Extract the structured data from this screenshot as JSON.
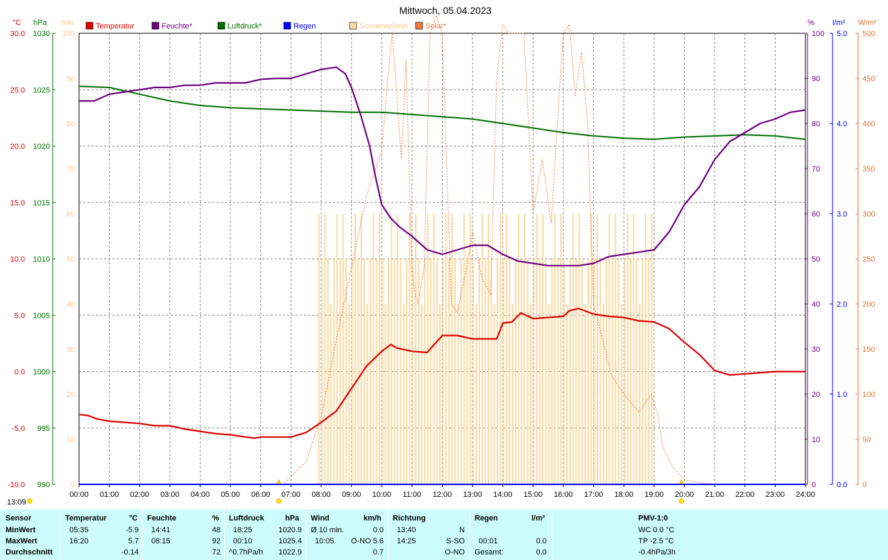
{
  "title": "Mittwoch, 05.04.2023",
  "time_label": "13:09",
  "colors": {
    "temperature": "#dd0000",
    "humidity": "#6e0080",
    "pressure": "#007000",
    "rain": "#0000ff",
    "sunshine": "#fbd9a0",
    "solar": "#f07840",
    "sun_axis": "#f8c890",
    "solar_axis": "#e07030",
    "grid": "#808080"
  },
  "legend": [
    {
      "label": "Temperatur",
      "color": "#dd0000"
    },
    {
      "label": "Feuchte*",
      "color": "#6e0080"
    },
    {
      "label": "Luftdruck*",
      "color": "#007000"
    },
    {
      "label": "Regen",
      "color": "#0000ff"
    },
    {
      "label": "Sonnenschein",
      "color": "#fbd9a0"
    },
    {
      "label": "Solar*",
      "color": "#f07840"
    }
  ],
  "axes": {
    "temperature": {
      "unit": "°C",
      "ticks": [
        "30.0",
        "25.0",
        "20.0",
        "15.0",
        "10.0",
        "5.0",
        "0.0",
        "-5.0",
        "-10.0"
      ],
      "range": [
        -10,
        30
      ]
    },
    "pressure": {
      "unit": "hPa",
      "ticks": [
        "1030",
        "1025",
        "1020",
        "1015",
        "1010",
        "1005",
        "1000",
        "995",
        "990"
      ],
      "range": [
        990,
        1030
      ]
    },
    "sunshine": {
      "unit": "min",
      "ticks": [
        "100",
        "90",
        "80",
        "70",
        "60",
        "50",
        "40",
        "30",
        "20",
        "10",
        "0"
      ],
      "range": [
        0,
        10
      ]
    },
    "humidity": {
      "unit": "%",
      "ticks": [
        "100",
        "90",
        "80",
        "70",
        "60",
        "50",
        "40",
        "30",
        "20",
        "10",
        "0"
      ],
      "range": [
        0,
        100
      ]
    },
    "rain": {
      "unit": "l/m²",
      "ticks": [
        "5.0",
        "4.0",
        "3.0",
        "2.0",
        "1.0",
        "0.0"
      ],
      "range": [
        0,
        5
      ]
    },
    "solar": {
      "unit": "W/m²",
      "ticks": [
        "500",
        "450",
        "400",
        "350",
        "300",
        "250",
        "200",
        "150",
        "100",
        "50",
        "0"
      ],
      "range": [
        0,
        500
      ]
    },
    "x_ticks": [
      "00:00",
      "01:00",
      "02:00",
      "03:00",
      "04:00",
      "05:00",
      "06:00",
      "07:00",
      "08:00",
      "09:00",
      "10:00",
      "11:00",
      "12:00",
      "13:00",
      "14:00",
      "15:00",
      "16:00",
      "17:00",
      "18:00",
      "19:00",
      "20:00",
      "21:00",
      "22:00",
      "23:00",
      "24:00"
    ],
    "sunrise_hour": 6.6,
    "sunset_hour": 19.9
  },
  "chart_data": {
    "type": "line",
    "title": "Mittwoch, 05.04.2023",
    "x_unit": "hour",
    "xlim": [
      0,
      24
    ],
    "grid": true,
    "legend_position": "top",
    "series": [
      {
        "name": "Temperatur",
        "axis": "°C",
        "x": [
          0,
          0.3,
          0.6,
          1,
          1.5,
          2,
          2.5,
          3,
          3.5,
          4,
          4.5,
          5,
          5.5,
          5.8,
          6,
          6.5,
          7,
          7.5,
          8,
          8.5,
          9,
          9.5,
          10,
          10.3,
          10.5,
          11,
          11.5,
          12,
          12.5,
          13,
          13.5,
          13.8,
          14,
          14.3,
          14.6,
          15,
          15.5,
          16,
          16.2,
          16.5,
          17,
          17.5,
          18,
          18.5,
          19,
          19.5,
          20,
          20.5,
          21,
          21.5,
          22,
          22.5,
          23,
          23.5,
          24
        ],
        "y": [
          -3.8,
          -3.9,
          -4.2,
          -4.4,
          -4.5,
          -4.6,
          -4.8,
          -4.8,
          -5.1,
          -5.3,
          -5.5,
          -5.6,
          -5.8,
          -5.9,
          -5.8,
          -5.8,
          -5.8,
          -5.4,
          -4.5,
          -3.5,
          -1.5,
          0.5,
          1.8,
          2.4,
          2.1,
          1.8,
          1.7,
          3.2,
          3.2,
          2.9,
          2.9,
          2.9,
          4.3,
          4.4,
          5.2,
          4.7,
          4.8,
          4.9,
          5.4,
          5.6,
          5.1,
          4.9,
          4.8,
          4.5,
          4.4,
          3.8,
          2.6,
          1.5,
          0.1,
          -0.3,
          -0.2,
          -0.1,
          0,
          0,
          0
        ]
      },
      {
        "name": "Feuchte*",
        "axis": "%",
        "x": [
          0,
          0.5,
          1,
          1.5,
          2,
          2.5,
          3,
          3.5,
          4,
          4.5,
          5,
          5.5,
          6,
          6.5,
          7,
          7.5,
          8,
          8.5,
          8.8,
          9,
          9.3,
          9.6,
          9.8,
          10,
          10.3,
          10.6,
          11,
          11.5,
          12,
          12.5,
          13,
          13.5,
          14,
          14.5,
          15,
          15.5,
          16,
          16.5,
          17,
          17.5,
          18,
          18.5,
          19,
          19.5,
          20,
          20.5,
          21,
          21.5,
          22,
          22.5,
          23,
          23.5,
          24
        ],
        "y": [
          85,
          85,
          86.5,
          87,
          87.5,
          88,
          88,
          88.5,
          88.5,
          89,
          89,
          89,
          89.8,
          90,
          90,
          91,
          92,
          92.5,
          91,
          88,
          82,
          75,
          68,
          62,
          59,
          57,
          55,
          52,
          51,
          52,
          53,
          53,
          51,
          49.5,
          49,
          48.5,
          48.5,
          48.5,
          49,
          50.5,
          51,
          51.5,
          52,
          56,
          62,
          66,
          72,
          76,
          78,
          80,
          81,
          82.5,
          83
        ]
      },
      {
        "name": "Luftdruck*",
        "axis": "hPa",
        "x": [
          0,
          1,
          2,
          3,
          4,
          5,
          6,
          7,
          8,
          9,
          10,
          11,
          12,
          13,
          14,
          15,
          16,
          17,
          18,
          19,
          20,
          21,
          22,
          23,
          24
        ],
        "y": [
          1025.3,
          1025.2,
          1024.6,
          1024.0,
          1023.6,
          1023.4,
          1023.3,
          1023.2,
          1023.1,
          1023.0,
          1023.0,
          1022.8,
          1022.6,
          1022.4,
          1022.0,
          1021.6,
          1021.2,
          1020.9,
          1020.7,
          1020.6,
          1020.8,
          1020.9,
          1021.0,
          1020.9,
          1020.6
        ]
      },
      {
        "name": "Regen",
        "axis": "l/m²",
        "x": [
          0,
          24
        ],
        "y": [
          0,
          0
        ]
      },
      {
        "name": "Solar*",
        "axis": "W/m²",
        "x": [
          6.8,
          7.5,
          8.0,
          8.5,
          9.0,
          9.5,
          10.0,
          10.2,
          10.35,
          10.5,
          10.65,
          10.8,
          11.0,
          11.1,
          11.2,
          11.4,
          11.6,
          11.8,
          12.0,
          12.3,
          12.5,
          12.8,
          13.0,
          13.3,
          13.6,
          13.8,
          14.0,
          14.2,
          14.4,
          14.7,
          15.0,
          15.3,
          15.6,
          15.8,
          16.0,
          16.2,
          16.4,
          16.6,
          16.8,
          17.0,
          17.3,
          17.6,
          18.0,
          18.5,
          18.9,
          19.1,
          19.3,
          19.6,
          20.0,
          20.5,
          21.0
        ],
        "y": [
          2,
          25,
          75,
          160,
          240,
          320,
          370,
          450,
          500,
          430,
          360,
          470,
          240,
          210,
          200,
          240,
          500,
          520,
          500,
          200,
          190,
          240,
          280,
          230,
          210,
          450,
          510,
          500,
          500,
          500,
          300,
          360,
          290,
          400,
          500,
          510,
          430,
          480,
          400,
          200,
          160,
          120,
          100,
          80,
          100,
          80,
          40,
          20,
          5,
          2,
          0
        ]
      },
      {
        "name": "Sonnenschein",
        "axis": "min",
        "type": "bar",
        "x": [
          7.9,
          8.2,
          8.5,
          8.8,
          9.1,
          9.4,
          9.7,
          10.0,
          10.3,
          10.6,
          10.9,
          11.2,
          11.5,
          11.8,
          12.1,
          12.4,
          12.7,
          13.0,
          13.3,
          13.6,
          13.9,
          14.2,
          14.5,
          14.8,
          15.1,
          15.4,
          15.7,
          16.0,
          16.3,
          16.6,
          16.9,
          17.2,
          17.5,
          17.8,
          18.1,
          18.4,
          18.7
        ],
        "y": [
          6,
          5,
          6,
          5,
          6,
          5,
          6,
          5,
          6,
          5,
          6,
          5,
          6,
          5,
          6,
          5,
          6,
          5,
          6,
          5,
          6,
          5,
          6,
          5,
          6,
          5,
          6,
          5,
          6,
          5,
          6,
          5,
          6,
          5,
          6,
          5,
          6
        ]
      }
    ]
  },
  "stats": {
    "sensor": {
      "header": "Sensor",
      "rows": [
        "MinWert",
        "MaxWert",
        "Durchschnitt"
      ]
    },
    "temperature": {
      "header": "Temperatur",
      "unit": "°C",
      "rows": [
        [
          "05:35",
          "-5.9"
        ],
        [
          "16:20",
          "5.7"
        ],
        [
          "",
          "-0.14"
        ]
      ]
    },
    "humidity": {
      "header": "Feuchte",
      "unit": "%",
      "rows": [
        [
          "14:41",
          "48"
        ],
        [
          "08:15",
          "92"
        ],
        [
          "",
          "72"
        ]
      ]
    },
    "pressure": {
      "header": "Luftdruck",
      "unit": "hPa",
      "rows": [
        [
          "18:25",
          "1020.9"
        ],
        [
          "00:10",
          "1025.4"
        ],
        [
          "^0.7hPa/h",
          "1022.9"
        ]
      ]
    },
    "wind": {
      "header": "Wind",
      "unit": "km/h",
      "rows": [
        [
          "Ø 10 min.",
          "0.0"
        ],
        [
          "10:05",
          "O-NO 5.6"
        ],
        [
          "",
          "0.7"
        ]
      ]
    },
    "direction": {
      "header": "Richtung",
      "rows": [
        [
          "13:40",
          "N"
        ],
        [
          "14:25",
          "S-SO"
        ],
        [
          "",
          "O-NO"
        ]
      ]
    },
    "rain": {
      "header": "Regen",
      "unit": "l/m²",
      "rows": [
        [
          "",
          ""
        ],
        [
          "00:01",
          "0.0"
        ],
        [
          "Gesamt:",
          "0.0"
        ]
      ]
    },
    "pmv": {
      "header": "PMV-1:0",
      "rows": [
        "WC 0.0 °C",
        "TP -2.5 °C",
        "-0.4hPa/3h"
      ]
    }
  }
}
